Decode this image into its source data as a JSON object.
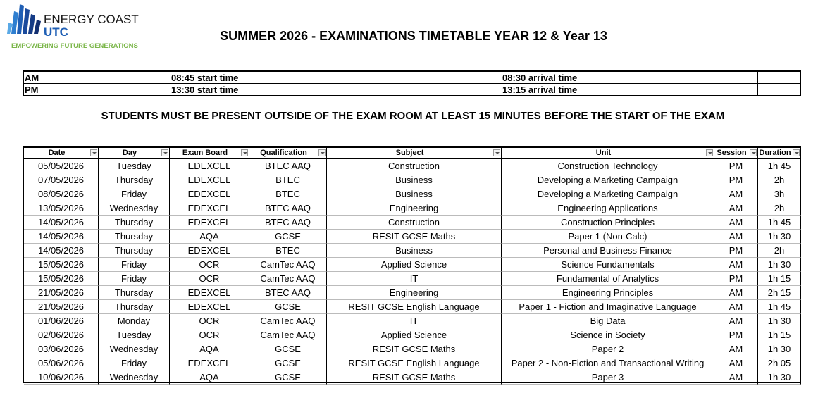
{
  "logo": {
    "name": "ENERGY COAST",
    "sub": "UTC",
    "tagline": "EMPOWERING FUTURE GENERATIONS"
  },
  "title": "SUMMER 2026 - EXAMINATIONS TIMETABLE YEAR 12 & Year 13",
  "times": {
    "rows": [
      [
        "AM",
        "08:45 start time",
        "08:30 arrival time"
      ],
      [
        "PM",
        "13:30 start time",
        "13:15 arrival time"
      ]
    ]
  },
  "notice": "STUDENTS MUST BE PRESENT OUTSIDE OF THE EXAM ROOM AT LEAST 15 MINUTES BEFORE THE START OF THE EXAM",
  "table": {
    "columns": [
      "Date",
      "Day",
      "Exam Board",
      "Qualification",
      "Subject",
      "Unit",
      "Session",
      "Duration"
    ],
    "rows": [
      [
        "05/05/2026",
        "Tuesday",
        "EDEXCEL",
        "BTEC AAQ",
        "Construction",
        "Construction Technology",
        "PM",
        "1h 45"
      ],
      [
        "07/05/2026",
        "Thursday",
        "EDEXCEL",
        "BTEC",
        "Business",
        "Developing a Marketing Campaign",
        "PM",
        "2h"
      ],
      [
        "08/05/2026",
        "Friday",
        "EDEXCEL",
        "BTEC",
        "Business",
        "Developing a Marketing Campaign",
        "AM",
        "3h"
      ],
      [
        "13/05/2026",
        "Wednesday",
        "EDEXCEL",
        "BTEC AAQ",
        "Engineering",
        "Engineering Applications",
        "AM",
        "2h"
      ],
      [
        "14/05/2026",
        "Thursday",
        "EDEXCEL",
        "BTEC AAQ",
        "Construction",
        "Construction Principles",
        "AM",
        "1h 45"
      ],
      [
        "14/05/2026",
        "Thursday",
        "AQA",
        "GCSE",
        "RESIT GCSE Maths",
        "Paper 1 (Non-Calc)",
        "AM",
        "1h 30"
      ],
      [
        "14/05/2026",
        "Thursday",
        "EDEXCEL",
        "BTEC",
        "Business",
        "Personal and Business Finance",
        "PM",
        "2h"
      ],
      [
        "15/05/2026",
        "Friday",
        "OCR",
        "CamTec AAQ",
        "Applied Science",
        "Science Fundamentals",
        "AM",
        "1h 30"
      ],
      [
        "15/05/2026",
        "Friday",
        "OCR",
        "CamTec AAQ",
        "IT",
        "Fundamental of Analytics",
        "PM",
        "1h 15"
      ],
      [
        "21/05/2026",
        "Thursday",
        "EDEXCEL",
        "BTEC AAQ",
        "Engineering",
        "Engineering Principles",
        "AM",
        "2h 15"
      ],
      [
        "21/05/2026",
        "Thursday",
        "EDEXCEL",
        "GCSE",
        "RESIT GCSE English Language",
        "Paper 1 - Fiction and Imaginative Language",
        "AM",
        "1h 45"
      ],
      [
        "01/06/2026",
        "Monday",
        "OCR",
        "CamTec AAQ",
        "IT",
        "Big Data",
        "AM",
        "1h 30"
      ],
      [
        "02/06/2026",
        "Tuesday",
        "OCR",
        "CamTec AAQ",
        "Applied Science",
        "Science in Society",
        "PM",
        "1h 15"
      ],
      [
        "03/06/2026",
        "Wednesday",
        "AQA",
        "GCSE",
        "RESIT GCSE Maths",
        "Paper 2",
        "AM",
        "1h 30"
      ],
      [
        "05/06/2026",
        "Friday",
        "EDEXCEL",
        "GCSE",
        "RESIT GCSE English Language",
        "Paper 2 - Non-Fiction and Transactional Writing",
        "AM",
        "2h 05"
      ],
      [
        "10/06/2026",
        "Wednesday",
        "AQA",
        "GCSE",
        "RESIT GCSE Maths",
        "Paper 3",
        "AM",
        "1h 30"
      ]
    ]
  }
}
